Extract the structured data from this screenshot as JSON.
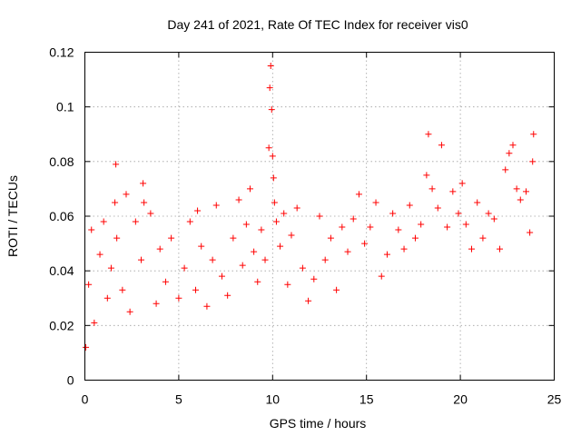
{
  "chart_data": {
    "type": "scatter",
    "title": "Day 241 of 2021, Rate Of TEC Index for receiver vis0",
    "xlabel": "GPS time / hours",
    "ylabel": "ROTI / TECUs",
    "xlim": [
      0,
      25
    ],
    "ylim": [
      0,
      0.12
    ],
    "xticks": [
      "0",
      "5",
      "10",
      "15",
      "20",
      "25"
    ],
    "yticks": [
      "0",
      "0.02",
      "0.04",
      "0.06",
      "0.08",
      "0.1",
      "0.12"
    ],
    "grid": true,
    "marker": "+",
    "color": "#ff0000",
    "series": [
      {
        "name": "ROTI",
        "x": [
          0.05,
          0.2,
          0.35,
          0.5,
          0.8,
          1.0,
          1.2,
          1.4,
          1.6,
          1.65,
          1.7,
          2.0,
          2.2,
          2.4,
          2.7,
          3.0,
          3.1,
          3.15,
          3.5,
          3.8,
          4.0,
          4.3,
          4.6,
          5.0,
          5.3,
          5.6,
          5.9,
          6.0,
          6.2,
          6.5,
          6.8,
          7.0,
          7.3,
          7.6,
          7.9,
          8.2,
          8.4,
          8.6,
          8.8,
          9.0,
          9.2,
          9.4,
          9.6,
          9.8,
          9.85,
          9.9,
          9.95,
          10.0,
          10.05,
          10.1,
          10.2,
          10.4,
          10.6,
          10.8,
          11.0,
          11.3,
          11.6,
          11.9,
          12.2,
          12.5,
          12.8,
          13.1,
          13.4,
          13.7,
          14.0,
          14.3,
          14.6,
          14.9,
          15.2,
          15.5,
          15.8,
          16.1,
          16.4,
          16.7,
          17.0,
          17.3,
          17.6,
          17.9,
          18.2,
          18.3,
          18.5,
          18.8,
          19.0,
          19.3,
          19.6,
          19.9,
          20.1,
          20.3,
          20.6,
          20.9,
          21.2,
          21.5,
          21.8,
          22.1,
          22.4,
          22.6,
          22.8,
          23.0,
          23.2,
          23.5,
          23.7,
          23.85,
          23.9
        ],
        "y": [
          0.012,
          0.035,
          0.055,
          0.021,
          0.046,
          0.058,
          0.03,
          0.041,
          0.065,
          0.079,
          0.052,
          0.033,
          0.068,
          0.025,
          0.058,
          0.044,
          0.072,
          0.065,
          0.061,
          0.028,
          0.048,
          0.036,
          0.052,
          0.03,
          0.041,
          0.058,
          0.033,
          0.062,
          0.049,
          0.027,
          0.044,
          0.064,
          0.038,
          0.031,
          0.052,
          0.066,
          0.042,
          0.057,
          0.07,
          0.047,
          0.036,
          0.055,
          0.044,
          0.085,
          0.107,
          0.115,
          0.099,
          0.082,
          0.074,
          0.065,
          0.058,
          0.049,
          0.061,
          0.035,
          0.053,
          0.063,
          0.041,
          0.029,
          0.037,
          0.06,
          0.044,
          0.052,
          0.033,
          0.056,
          0.047,
          0.059,
          0.068,
          0.05,
          0.056,
          0.065,
          0.038,
          0.046,
          0.061,
          0.055,
          0.048,
          0.064,
          0.052,
          0.057,
          0.075,
          0.09,
          0.07,
          0.063,
          0.086,
          0.056,
          0.069,
          0.061,
          0.072,
          0.057,
          0.048,
          0.065,
          0.052,
          0.061,
          0.059,
          0.048,
          0.077,
          0.083,
          0.086,
          0.07,
          0.066,
          0.069,
          0.054,
          0.08,
          0.09
        ]
      }
    ]
  }
}
